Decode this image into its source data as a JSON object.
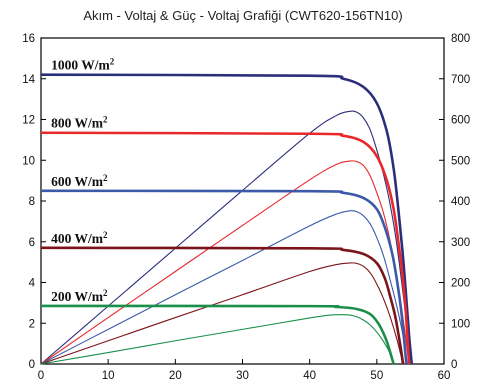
{
  "chart_data": {
    "type": "line",
    "title": "Akım - Voltaj & Güç - Voltaj Grafiği (CWT620-156TN10)",
    "xlabel": "",
    "ylabel": "",
    "y2label": "",
    "xlim": [
      0,
      60
    ],
    "ylim": [
      0,
      16
    ],
    "y2lim": [
      0,
      800
    ],
    "x_ticks": [
      "0",
      "10",
      "20",
      "30",
      "40",
      "50",
      "60"
    ],
    "y_ticks": [
      "0",
      "2",
      "4",
      "6",
      "8",
      "10",
      "12",
      "14",
      "16"
    ],
    "y2_ticks": [
      "0",
      "100",
      "200",
      "300",
      "400",
      "500",
      "600",
      "700",
      "800"
    ],
    "grid": false,
    "series": [
      {
        "name": "1000 W/m²",
        "color": "#2b2f7a",
        "current": {
          "x": [
            0,
            40,
            45,
            48,
            50,
            51.5,
            52.5,
            53.2,
            53.8,
            54.3,
            54.8,
            55.2
          ],
          "y": [
            14.2,
            14.15,
            14.0,
            13.6,
            12.8,
            11.4,
            9.6,
            7.6,
            5.6,
            3.6,
            1.4,
            0
          ]
        },
        "power": {
          "x": [
            0,
            10,
            20,
            30,
            40,
            44,
            46,
            47,
            48,
            49,
            50,
            51,
            52,
            53,
            54,
            55.2
          ],
          "y": [
            0,
            142,
            284,
            426,
            566,
            610,
            620,
            618,
            604,
            575,
            525,
            465,
            390,
            290,
            160,
            0
          ]
        }
      },
      {
        "name": "800 W/m²",
        "color": "#e8282a",
        "current": {
          "x": [
            0,
            40,
            45,
            48,
            50,
            51.5,
            52.5,
            53.2,
            53.8,
            54.3,
            54.8
          ],
          "y": [
            11.35,
            11.3,
            11.2,
            10.9,
            10.2,
            9.0,
            7.6,
            6.0,
            4.4,
            2.6,
            0
          ]
        },
        "power": {
          "x": [
            0,
            10,
            20,
            30,
            40,
            44,
            46,
            47,
            48,
            49,
            50,
            51,
            52,
            53,
            54,
            54.8
          ],
          "y": [
            0,
            114,
            227,
            340,
            452,
            490,
            498,
            497,
            487,
            462,
            420,
            370,
            300,
            210,
            100,
            0
          ]
        }
      },
      {
        "name": "600 W/m²",
        "color": "#3d5aa8",
        "current": {
          "x": [
            0,
            40,
            45,
            48,
            50,
            51.3,
            52.3,
            53.0,
            53.6,
            54.0,
            54.4
          ],
          "y": [
            8.5,
            8.48,
            8.4,
            8.15,
            7.6,
            6.6,
            5.4,
            4.1,
            2.7,
            1.4,
            0
          ]
        },
        "power": {
          "x": [
            0,
            10,
            20,
            30,
            40,
            44,
            46,
            47,
            48,
            49,
            50,
            51,
            52,
            53,
            54,
            54.4
          ],
          "y": [
            0,
            85,
            170,
            254,
            339,
            368,
            376,
            374,
            364,
            344,
            310,
            265,
            205,
            140,
            60,
            0
          ]
        }
      },
      {
        "name": "400 W/m²",
        "color": "#7a1418",
        "current": {
          "x": [
            0,
            40,
            45,
            48,
            50,
            51.2,
            52.0,
            52.7,
            53.2,
            53.6,
            53.9
          ],
          "y": [
            5.7,
            5.68,
            5.6,
            5.4,
            4.95,
            4.2,
            3.3,
            2.4,
            1.5,
            0.7,
            0
          ]
        },
        "power": {
          "x": [
            0,
            10,
            20,
            30,
            40,
            44,
            46,
            47,
            48,
            49,
            50,
            51,
            52,
            53,
            53.9
          ],
          "y": [
            0,
            57,
            114,
            170,
            227,
            244,
            248,
            247,
            240,
            224,
            196,
            160,
            115,
            60,
            0
          ]
        }
      },
      {
        "name": "200 W/m²",
        "color": "#1a8f4a",
        "current": {
          "x": [
            0,
            40,
            44,
            47,
            49,
            50.2,
            51.0,
            51.6,
            52.1,
            52.5
          ],
          "y": [
            2.85,
            2.84,
            2.8,
            2.7,
            2.45,
            2.0,
            1.5,
            1.0,
            0.45,
            0
          ]
        },
        "power": {
          "x": [
            0,
            10,
            20,
            30,
            40,
            43,
            45,
            46,
            47,
            48,
            49,
            50,
            51,
            52,
            52.5
          ],
          "y": [
            0,
            28,
            57,
            85,
            113,
            120,
            121,
            120,
            116,
            108,
            96,
            78,
            55,
            25,
            0
          ]
        }
      }
    ]
  }
}
